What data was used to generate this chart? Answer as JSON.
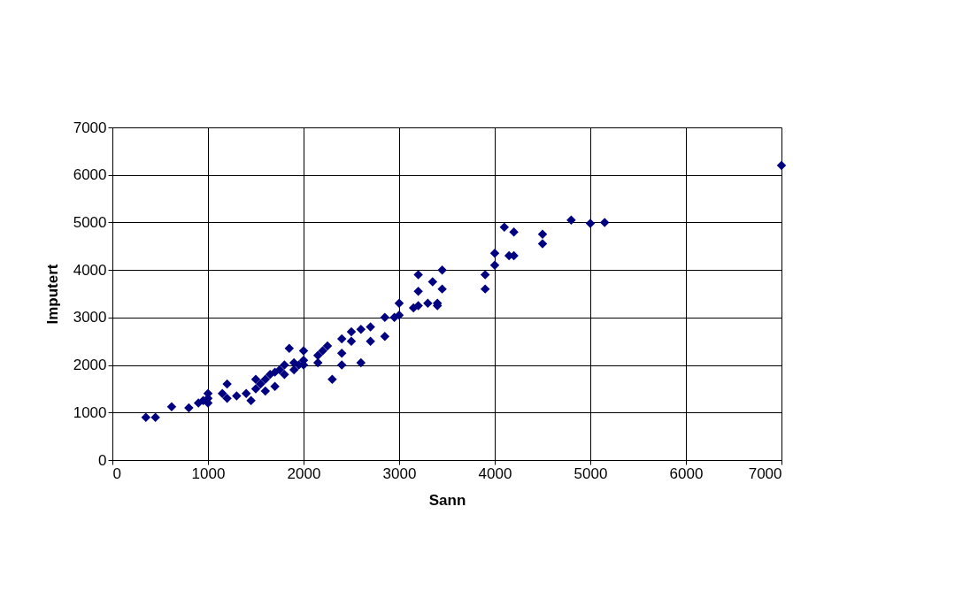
{
  "chart_data": {
    "type": "scatter",
    "xlabel": "Sann",
    "ylabel": "Imputert",
    "x": [
      350,
      450,
      620,
      800,
      900,
      950,
      1000,
      1000,
      1000,
      1150,
      1200,
      1200,
      1300,
      1400,
      1450,
      1500,
      1500,
      1550,
      1600,
      1600,
      1650,
      1700,
      1700,
      1750,
      1800,
      1800,
      1850,
      1900,
      1900,
      1950,
      2000,
      2000,
      2000,
      2150,
      2150,
      2200,
      2250,
      2300,
      2400,
      2400,
      2400,
      2500,
      2500,
      2600,
      2600,
      2700,
      2700,
      2850,
      2850,
      2950,
      3000,
      3000,
      3150,
      3200,
      3200,
      3200,
      3300,
      3350,
      3400,
      3400,
      3450,
      3450,
      3900,
      3900,
      4000,
      4000,
      4100,
      4150,
      4200,
      4200,
      4500,
      4500,
      4800,
      5000,
      5150,
      7000
    ],
    "series": [
      {
        "color": "#000080",
        "values": [
          900,
          900,
          1120,
          1100,
          1200,
          1250,
          1200,
          1300,
          1400,
          1400,
          1600,
          1300,
          1350,
          1400,
          1250,
          1700,
          1500,
          1600,
          1450,
          1700,
          1800,
          1550,
          1850,
          1900,
          1800,
          2000,
          2350,
          1900,
          2050,
          2000,
          2300,
          2100,
          2000,
          2200,
          2050,
          2300,
          2400,
          1700,
          2550,
          2250,
          2000,
          2500,
          2700,
          2050,
          2750,
          2800,
          2500,
          2600,
          3000,
          3000,
          3050,
          3300,
          3200,
          3550,
          3900,
          3250,
          3300,
          3750,
          3250,
          3300,
          3600,
          4000,
          3900,
          3600,
          4350,
          4100,
          4900,
          4300,
          4800,
          4300,
          4750,
          4550,
          5050,
          4980,
          5000,
          6200
        ]
      }
    ],
    "xlim": [
      0,
      7000
    ],
    "xticks": [
      0,
      1000,
      2000,
      3000,
      4000,
      5000,
      6000,
      7000
    ],
    "ylim": [
      0,
      7000
    ],
    "yticks": [
      0,
      1000,
      2000,
      3000,
      4000,
      5000,
      6000,
      7000
    ],
    "grid": true,
    "marker": "diamond",
    "legend": false
  }
}
